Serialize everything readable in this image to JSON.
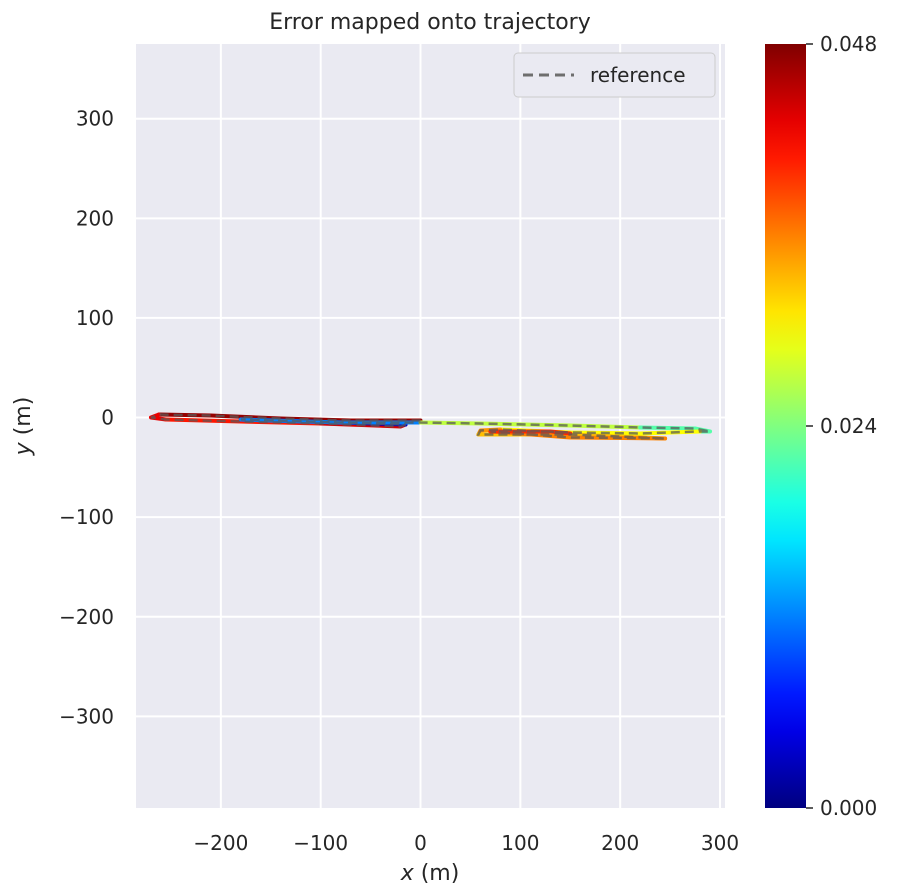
{
  "chart_data": {
    "type": "line",
    "title": "Error mapped onto trajectory",
    "xlabel": "x (m)",
    "ylabel": "y (m)",
    "xlim": [
      -285,
      305
    ],
    "ylim": [
      -392,
      375
    ],
    "x_ticks": [
      -200,
      -100,
      0,
      100,
      200,
      300
    ],
    "y_ticks": [
      300,
      200,
      100,
      0,
      -100,
      -200,
      -300
    ],
    "x_tick_labels": [
      "−200",
      "−100",
      "0",
      "100",
      "200",
      "300"
    ],
    "y_tick_labels": [
      "300",
      "200",
      "100",
      "0",
      "−100",
      "−200",
      "−300"
    ],
    "grid": true,
    "legend": {
      "position": "top-right",
      "entries": [
        {
          "label": "reference",
          "style": "dashed",
          "color": "#6e6e6e"
        }
      ]
    },
    "colorbar": {
      "colormap": "jet",
      "min": 0.0,
      "max": 0.048,
      "ticks": [
        0.048,
        0.024,
        0.0
      ],
      "tick_labels": [
        "0.048",
        "0.024",
        "0.000"
      ]
    },
    "series": [
      {
        "name": "reference",
        "style": "dashed",
        "points": [
          [
            0,
            -3
          ],
          [
            -70,
            -3
          ],
          [
            -140,
            -1
          ],
          [
            -210,
            2
          ],
          [
            -262,
            3
          ],
          [
            -270,
            0
          ],
          [
            -255,
            -2
          ],
          [
            -180,
            -4
          ],
          [
            -100,
            -6
          ],
          [
            -20,
            -9
          ],
          [
            -15,
            -7
          ],
          [
            -180,
            -2
          ],
          [
            -150,
            -3
          ],
          [
            -80,
            -5
          ],
          [
            -10,
            -5
          ],
          [
            0,
            -5
          ],
          [
            60,
            -6
          ],
          [
            150,
            -8
          ],
          [
            220,
            -10
          ],
          [
            275,
            -11
          ],
          [
            290,
            -14
          ],
          [
            280,
            -14
          ],
          [
            220,
            -16
          ],
          [
            150,
            -15
          ],
          [
            80,
            -12
          ],
          [
            60,
            -13
          ],
          [
            58,
            -17
          ],
          [
            150,
            -17
          ],
          [
            245,
            -21
          ],
          [
            150,
            -20
          ],
          [
            70,
            -14
          ],
          [
            130,
            -14
          ],
          [
            150,
            -16
          ]
        ]
      }
    ],
    "error_segments": [
      {
        "x": [
          0,
          -70,
          -140,
          -210,
          -262
        ],
        "y": [
          -3,
          -3,
          -1,
          2,
          3
        ],
        "error": 0.047
      },
      {
        "x": [
          -262,
          -270,
          -255
        ],
        "y": [
          3,
          0,
          -2
        ],
        "error": 0.043
      },
      {
        "x": [
          -255,
          -180,
          -100
        ],
        "y": [
          -2,
          -4,
          -6
        ],
        "error": 0.041
      },
      {
        "x": [
          -100,
          -20,
          -15
        ],
        "y": [
          -6,
          -9,
          -7
        ],
        "error": 0.044
      },
      {
        "x": [
          -15,
          -180
        ],
        "y": [
          -7,
          -2
        ],
        "error": 0.003
      },
      {
        "x": [
          -180,
          -150,
          -80,
          -10,
          0
        ],
        "y": [
          -2,
          -3,
          -5,
          -5,
          -5
        ],
        "error": 0.012
      },
      {
        "x": [
          0,
          60,
          150,
          220
        ],
        "y": [
          -5,
          -6,
          -8,
          -10
        ],
        "error": 0.027
      },
      {
        "x": [
          220,
          275,
          290,
          280
        ],
        "y": [
          -10,
          -11,
          -14,
          -14
        ],
        "error": 0.022
      },
      {
        "x": [
          280,
          220,
          150,
          80
        ],
        "y": [
          -14,
          -16,
          -15,
          -12
        ],
        "error": 0.03
      },
      {
        "x": [
          80,
          60,
          58
        ],
        "y": [
          -12,
          -13,
          -17
        ],
        "error": 0.035
      },
      {
        "x": [
          58,
          150,
          245
        ],
        "y": [
          -17,
          -17,
          -21
        ],
        "error": 0.033
      },
      {
        "x": [
          245,
          150,
          70
        ],
        "y": [
          -21,
          -20,
          -14
        ],
        "error": 0.036
      },
      {
        "x": [
          70,
          130,
          150
        ],
        "y": [
          -14,
          -14,
          -16
        ],
        "error": 0.04
      }
    ]
  }
}
